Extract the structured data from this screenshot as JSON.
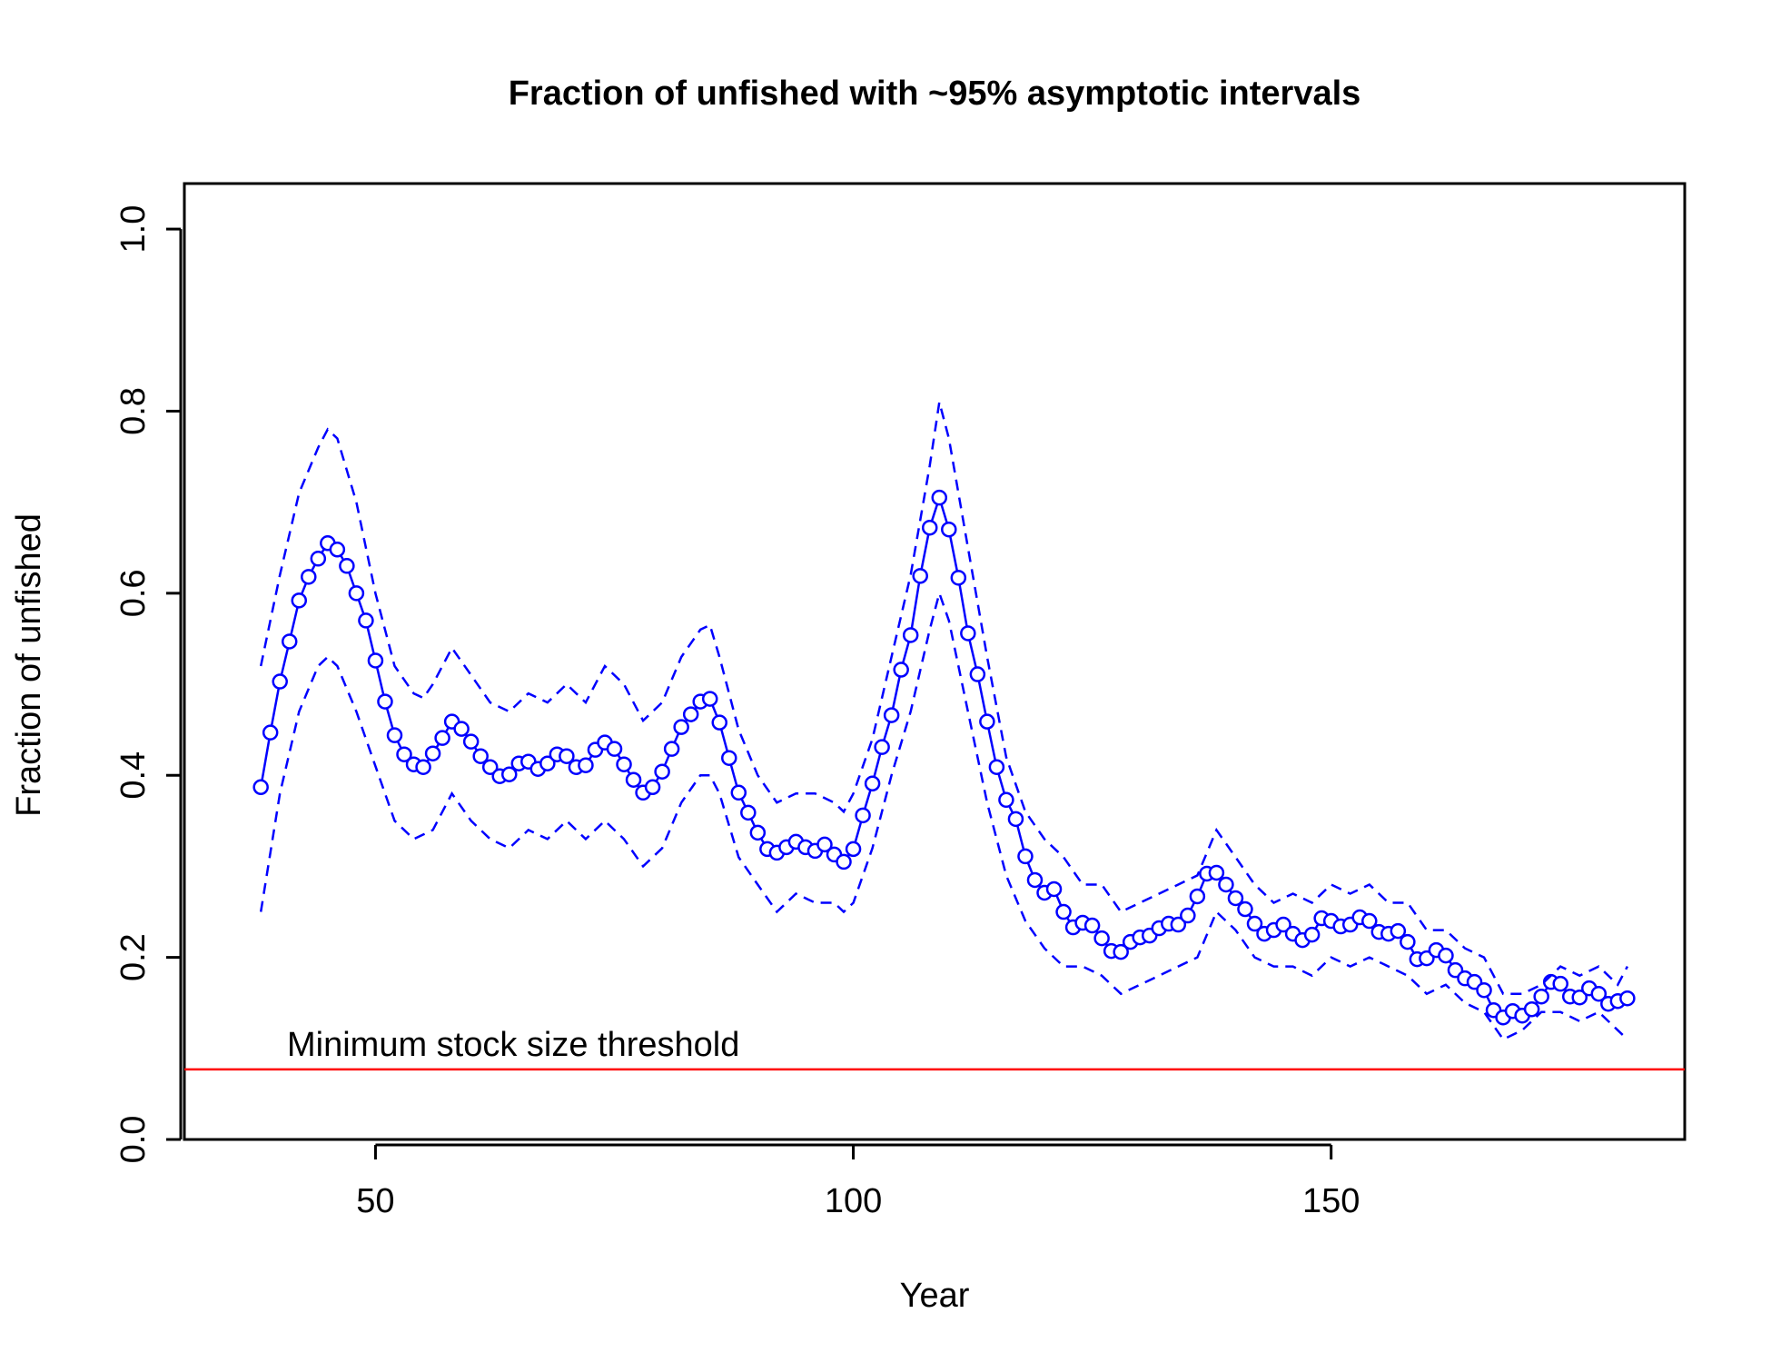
{
  "chart_data": {
    "type": "line",
    "title": "Fraction of unfished with ~95% asymptotic intervals",
    "xlabel": "Year",
    "ylabel": "Fraction of unfished",
    "xlim": [
      30,
      187
    ],
    "ylim": [
      0,
      1.05
    ],
    "x_ticks": [
      50,
      100,
      150
    ],
    "x_tick_labels": [
      "50",
      "100",
      "150"
    ],
    "y_ticks": [
      0,
      0.2,
      0.4,
      0.6,
      0.8,
      1.0
    ],
    "y_tick_labels": [
      "0.0",
      "0.2",
      "0.4",
      "0.6",
      "0.8",
      "1.0"
    ],
    "grid": false,
    "legend": "none",
    "colors": {
      "series": "#0000ff",
      "threshold": "#ff0000",
      "axis": "#000000"
    },
    "series": [
      {
        "style": "line-with-points",
        "x": [
          38,
          39,
          40,
          41,
          42,
          43,
          44,
          45,
          46,
          47,
          48,
          49,
          50,
          51,
          52,
          53,
          54,
          55,
          56,
          57,
          58,
          59,
          60,
          61,
          62,
          63,
          64,
          65,
          66,
          67,
          68,
          69,
          70,
          71,
          72,
          73,
          74,
          75,
          76,
          77,
          78,
          79,
          80,
          81,
          82,
          83,
          84,
          85,
          86,
          87,
          88,
          89,
          90,
          91,
          92,
          93,
          94,
          95,
          96,
          97,
          98,
          99,
          100,
          101,
          102,
          103,
          104,
          105,
          106,
          107,
          108,
          109,
          110,
          111,
          112,
          113,
          114,
          115,
          116,
          117,
          118,
          119,
          120,
          121,
          122,
          123,
          124,
          125,
          126,
          127,
          128,
          129,
          130,
          131,
          132,
          133,
          134,
          135,
          136,
          137,
          138,
          139,
          140,
          141,
          142,
          143,
          144,
          145,
          146,
          147,
          148,
          149,
          150,
          151,
          152,
          153,
          154,
          155,
          156,
          157,
          158,
          159,
          160,
          161,
          162,
          163,
          164,
          165,
          166,
          167,
          168,
          169,
          170,
          171,
          172,
          173,
          174,
          175,
          176,
          177,
          178,
          179,
          180,
          181
        ],
        "y": [
          0.387,
          0.447,
          0.503,
          0.547,
          0.592,
          0.618,
          0.638,
          0.655,
          0.648,
          0.63,
          0.6,
          0.57,
          0.526,
          0.481,
          0.444,
          0.423,
          0.412,
          0.409,
          0.424,
          0.441,
          0.459,
          0.451,
          0.437,
          0.421,
          0.409,
          0.399,
          0.401,
          0.413,
          0.415,
          0.407,
          0.413,
          0.423,
          0.421,
          0.409,
          0.411,
          0.428,
          0.436,
          0.429,
          0.412,
          0.395,
          0.381,
          0.387,
          0.404,
          0.429,
          0.453,
          0.467,
          0.481,
          0.484,
          0.458,
          0.419,
          0.381,
          0.359,
          0.337,
          0.319,
          0.315,
          0.321,
          0.327,
          0.321,
          0.317,
          0.324,
          0.313,
          0.305,
          0.319,
          0.356,
          0.391,
          0.431,
          0.466,
          0.516,
          0.554,
          0.619,
          0.672,
          0.705,
          0.67,
          0.617,
          0.556,
          0.511,
          0.459,
          0.409,
          0.373,
          0.352,
          0.311,
          0.285,
          0.271,
          0.275,
          0.25,
          0.233,
          0.238,
          0.235,
          0.221,
          0.207,
          0.206,
          0.217,
          0.222,
          0.224,
          0.232,
          0.237,
          0.236,
          0.246,
          0.267,
          0.292,
          0.293,
          0.28,
          0.265,
          0.253,
          0.237,
          0.226,
          0.23,
          0.236,
          0.226,
          0.219,
          0.225,
          0.243,
          0.24,
          0.234,
          0.236,
          0.244,
          0.24,
          0.228,
          0.226,
          0.229,
          0.217,
          0.198,
          0.199,
          0.208,
          0.202,
          0.186,
          0.177,
          0.173,
          0.164,
          0.142,
          0.134,
          0.141,
          0.136,
          0.143,
          0.157,
          0.173,
          0.171,
          0.157,
          0.156,
          0.166,
          0.16,
          0.149,
          0.152,
          0.155
        ]
      },
      {
        "style": "dashed",
        "x": [
          38,
          40,
          42,
          44,
          45,
          46,
          48,
          50,
          52,
          54,
          55,
          56,
          58,
          60,
          62,
          64,
          66,
          68,
          70,
          72,
          74,
          76,
          78,
          80,
          82,
          84,
          85,
          86,
          88,
          90,
          92,
          94,
          96,
          98,
          99,
          100,
          102,
          104,
          106,
          108,
          109,
          110,
          112,
          114,
          116,
          118,
          120,
          122,
          124,
          126,
          128,
          130,
          132,
          134,
          136,
          138,
          140,
          142,
          144,
          146,
          148,
          150,
          152,
          154,
          156,
          158,
          160,
          162,
          164,
          166,
          168,
          170,
          172,
          174,
          176,
          178,
          180,
          181
        ],
        "y": [
          0.52,
          0.62,
          0.71,
          0.76,
          0.78,
          0.77,
          0.7,
          0.6,
          0.52,
          0.49,
          0.485,
          0.5,
          0.54,
          0.51,
          0.48,
          0.47,
          0.49,
          0.48,
          0.5,
          0.48,
          0.52,
          0.5,
          0.46,
          0.48,
          0.53,
          0.56,
          0.565,
          0.53,
          0.45,
          0.4,
          0.37,
          0.38,
          0.38,
          0.37,
          0.36,
          0.38,
          0.44,
          0.53,
          0.62,
          0.74,
          0.81,
          0.77,
          0.65,
          0.53,
          0.42,
          0.36,
          0.33,
          0.31,
          0.28,
          0.28,
          0.25,
          0.26,
          0.27,
          0.28,
          0.29,
          0.34,
          0.31,
          0.28,
          0.26,
          0.27,
          0.26,
          0.28,
          0.27,
          0.28,
          0.26,
          0.26,
          0.23,
          0.23,
          0.21,
          0.2,
          0.16,
          0.16,
          0.17,
          0.19,
          0.18,
          0.19,
          0.17,
          0.19
        ]
      },
      {
        "style": "dashed",
        "x": [
          38,
          40,
          42,
          44,
          45,
          46,
          48,
          50,
          52,
          54,
          55,
          56,
          58,
          60,
          62,
          64,
          66,
          68,
          70,
          72,
          74,
          76,
          78,
          80,
          82,
          84,
          85,
          86,
          88,
          90,
          92,
          94,
          96,
          98,
          99,
          100,
          102,
          104,
          106,
          108,
          109,
          110,
          112,
          114,
          116,
          118,
          120,
          122,
          124,
          126,
          128,
          130,
          132,
          134,
          136,
          138,
          140,
          142,
          144,
          146,
          148,
          150,
          152,
          154,
          156,
          158,
          160,
          162,
          164,
          166,
          168,
          170,
          172,
          174,
          176,
          178,
          180,
          181
        ],
        "y": [
          0.25,
          0.38,
          0.47,
          0.52,
          0.53,
          0.52,
          0.47,
          0.41,
          0.35,
          0.33,
          0.335,
          0.34,
          0.38,
          0.35,
          0.33,
          0.32,
          0.34,
          0.33,
          0.35,
          0.33,
          0.35,
          0.33,
          0.3,
          0.32,
          0.37,
          0.4,
          0.4,
          0.38,
          0.31,
          0.28,
          0.25,
          0.27,
          0.26,
          0.26,
          0.25,
          0.26,
          0.32,
          0.4,
          0.47,
          0.56,
          0.6,
          0.57,
          0.47,
          0.37,
          0.29,
          0.24,
          0.21,
          0.19,
          0.19,
          0.18,
          0.16,
          0.17,
          0.18,
          0.19,
          0.2,
          0.25,
          0.23,
          0.2,
          0.19,
          0.19,
          0.18,
          0.2,
          0.19,
          0.2,
          0.19,
          0.18,
          0.16,
          0.17,
          0.15,
          0.14,
          0.11,
          0.12,
          0.14,
          0.14,
          0.13,
          0.14,
          0.12,
          0.11
        ]
      }
    ],
    "threshold": {
      "y": 0.077,
      "label": "Minimum stock size threshold"
    }
  }
}
